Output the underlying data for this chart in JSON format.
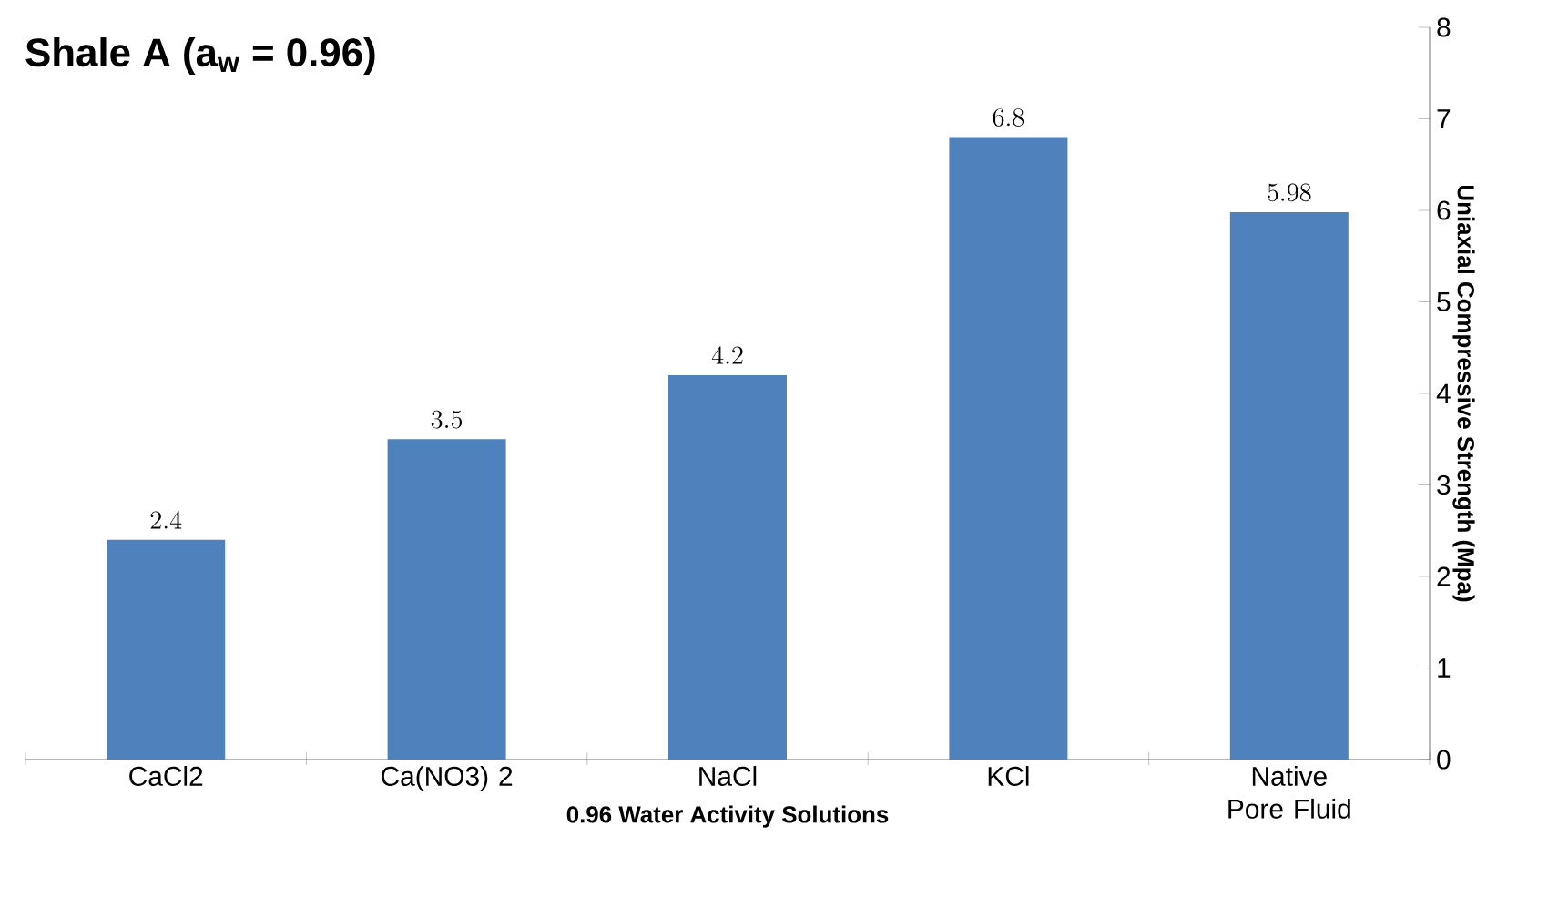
{
  "chart_data": {
    "type": "bar",
    "title": "**Shale A  (a$_{w}$ = 0.96)**",
    "xlabel": "0.96 Water Activity Solutions",
    "ylabel": "Uniaxial Compressive Strength (Mpa)",
    "categories": [
      "CaCl2",
      "Ca(NO3) 2",
      "NaCl",
      "KCl",
      "Native Pore Fluid"
    ],
    "values": [
      2.4,
      3.5,
      4.2,
      6.8,
      5.98
    ],
    "color": "#4f81bd",
    "ylim": [
      0,
      8
    ],
    "yticks": [
      0,
      1,
      2,
      3,
      4,
      5,
      6,
      7,
      8
    ],
    "data_labels": true
  }
}
